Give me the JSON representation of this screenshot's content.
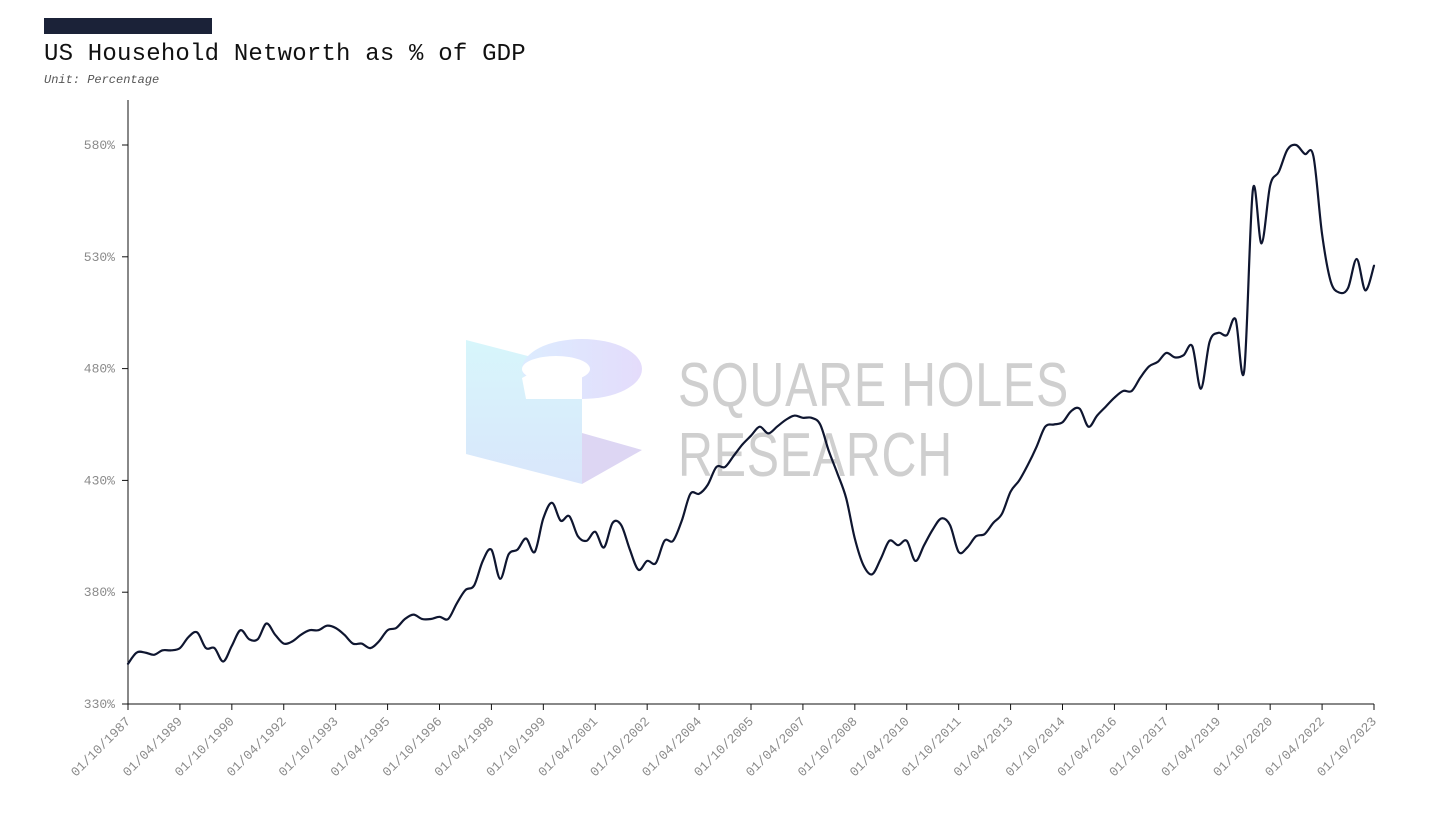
{
  "header": {
    "title": "US Household Networth as % of GDP",
    "subtitle": "Unit: Percentage"
  },
  "watermark": {
    "line1": "SQUARE HOLES",
    "line2": "RESEARCH"
  },
  "colors": {
    "accent": "#1b2238",
    "line": "#0f1630",
    "axis": "#111111",
    "tick_label": "#8a8a8a"
  },
  "chart_data": {
    "type": "line",
    "title": "US Household Networth as % of GDP",
    "subtitle": "Unit: Percentage",
    "xlabel": "",
    "ylabel": "",
    "ylim": [
      330,
      600
    ],
    "yticks": [
      330,
      380,
      430,
      480,
      530,
      580
    ],
    "ytick_labels": [
      "330%",
      "380%",
      "430%",
      "480%",
      "530%",
      "580%"
    ],
    "xlim": [
      "1987-10-01",
      "2023-10-01"
    ],
    "xtick_labels": [
      "01/10/1987",
      "01/04/1989",
      "01/10/1990",
      "01/04/1992",
      "01/10/1993",
      "01/04/1995",
      "01/10/1996",
      "01/04/1998",
      "01/10/1999",
      "01/04/2001",
      "01/10/2002",
      "01/04/2004",
      "01/10/2005",
      "01/04/2007",
      "01/10/2008",
      "01/04/2010",
      "01/10/2011",
      "01/04/2013",
      "01/10/2014",
      "01/04/2016",
      "01/10/2017",
      "01/04/2019",
      "01/10/2020",
      "01/04/2022",
      "01/10/2023"
    ],
    "grid": false,
    "legend": "none",
    "series": [
      {
        "name": "",
        "points": [
          [
            "1987-10-01",
            348
          ],
          [
            "1988-01-01",
            353
          ],
          [
            "1988-04-01",
            353
          ],
          [
            "1988-07-01",
            352
          ],
          [
            "1988-10-01",
            354
          ],
          [
            "1989-01-01",
            354
          ],
          [
            "1989-04-01",
            355
          ],
          [
            "1989-07-01",
            360
          ],
          [
            "1989-10-01",
            362
          ],
          [
            "1990-01-01",
            355
          ],
          [
            "1990-04-01",
            355
          ],
          [
            "1990-07-01",
            349
          ],
          [
            "1990-10-01",
            356
          ],
          [
            "1991-01-01",
            363
          ],
          [
            "1991-04-01",
            359
          ],
          [
            "1991-07-01",
            359
          ],
          [
            "1991-10-01",
            366
          ],
          [
            "1992-01-01",
            361
          ],
          [
            "1992-04-01",
            357
          ],
          [
            "1992-07-01",
            358
          ],
          [
            "1992-10-01",
            361
          ],
          [
            "1993-01-01",
            363
          ],
          [
            "1993-04-01",
            363
          ],
          [
            "1993-07-01",
            365
          ],
          [
            "1993-10-01",
            364
          ],
          [
            "1994-01-01",
            361
          ],
          [
            "1994-04-01",
            357
          ],
          [
            "1994-07-01",
            357
          ],
          [
            "1994-10-01",
            355
          ],
          [
            "1995-01-01",
            358
          ],
          [
            "1995-04-01",
            363
          ],
          [
            "1995-07-01",
            364
          ],
          [
            "1995-10-01",
            368
          ],
          [
            "1996-01-01",
            370
          ],
          [
            "1996-04-01",
            368
          ],
          [
            "1996-07-01",
            368
          ],
          [
            "1996-10-01",
            369
          ],
          [
            "1997-01-01",
            368
          ],
          [
            "1997-04-01",
            375
          ],
          [
            "1997-07-01",
            381
          ],
          [
            "1997-10-01",
            383
          ],
          [
            "1998-01-01",
            394
          ],
          [
            "1998-04-01",
            399
          ],
          [
            "1998-07-01",
            386
          ],
          [
            "1998-10-01",
            397
          ],
          [
            "1999-01-01",
            399
          ],
          [
            "1999-04-01",
            404
          ],
          [
            "1999-07-01",
            398
          ],
          [
            "1999-10-01",
            413
          ],
          [
            "2000-01-01",
            420
          ],
          [
            "2000-04-01",
            412
          ],
          [
            "2000-07-01",
            414
          ],
          [
            "2000-10-01",
            405
          ],
          [
            "2001-01-01",
            403
          ],
          [
            "2001-04-01",
            407
          ],
          [
            "2001-07-01",
            400
          ],
          [
            "2001-10-01",
            411
          ],
          [
            "2002-01-01",
            410
          ],
          [
            "2002-04-01",
            399
          ],
          [
            "2002-07-01",
            390
          ],
          [
            "2002-10-01",
            394
          ],
          [
            "2003-01-01",
            393
          ],
          [
            "2003-04-01",
            403
          ],
          [
            "2003-07-01",
            403
          ],
          [
            "2003-10-01",
            412
          ],
          [
            "2004-01-01",
            424
          ],
          [
            "2004-04-01",
            424
          ],
          [
            "2004-07-01",
            428
          ],
          [
            "2004-10-01",
            436
          ],
          [
            "2005-01-01",
            436
          ],
          [
            "2005-04-01",
            441
          ],
          [
            "2005-07-01",
            446
          ],
          [
            "2005-10-01",
            450
          ],
          [
            "2006-01-01",
            454
          ],
          [
            "2006-04-01",
            451
          ],
          [
            "2006-07-01",
            454
          ],
          [
            "2006-10-01",
            457
          ],
          [
            "2007-01-01",
            459
          ],
          [
            "2007-04-01",
            458
          ],
          [
            "2007-07-01",
            458
          ],
          [
            "2007-10-01",
            455
          ],
          [
            "2008-01-01",
            443
          ],
          [
            "2008-04-01",
            433
          ],
          [
            "2008-07-01",
            422
          ],
          [
            "2008-10-01",
            404
          ],
          [
            "2009-01-01",
            392
          ],
          [
            "2009-04-01",
            388
          ],
          [
            "2009-07-01",
            395
          ],
          [
            "2009-10-01",
            403
          ],
          [
            "2010-01-01",
            401
          ],
          [
            "2010-04-01",
            403
          ],
          [
            "2010-07-01",
            394
          ],
          [
            "2010-10-01",
            401
          ],
          [
            "2011-01-01",
            408
          ],
          [
            "2011-04-01",
            413
          ],
          [
            "2011-07-01",
            410
          ],
          [
            "2011-10-01",
            398
          ],
          [
            "2012-01-01",
            400
          ],
          [
            "2012-04-01",
            405
          ],
          [
            "2012-07-01",
            406
          ],
          [
            "2012-10-01",
            411
          ],
          [
            "2013-01-01",
            415
          ],
          [
            "2013-04-01",
            425
          ],
          [
            "2013-07-01",
            430
          ],
          [
            "2013-10-01",
            437
          ],
          [
            "2014-01-01",
            445
          ],
          [
            "2014-04-01",
            454
          ],
          [
            "2014-07-01",
            455
          ],
          [
            "2014-10-01",
            456
          ],
          [
            "2015-01-01",
            461
          ],
          [
            "2015-04-01",
            462
          ],
          [
            "2015-07-01",
            454
          ],
          [
            "2015-10-01",
            459
          ],
          [
            "2016-01-01",
            463
          ],
          [
            "2016-04-01",
            467
          ],
          [
            "2016-07-01",
            470
          ],
          [
            "2016-10-01",
            470
          ],
          [
            "2017-01-01",
            476
          ],
          [
            "2017-04-01",
            481
          ],
          [
            "2017-07-01",
            483
          ],
          [
            "2017-10-01",
            487
          ],
          [
            "2018-01-01",
            485
          ],
          [
            "2018-04-01",
            486
          ],
          [
            "2018-07-01",
            490
          ],
          [
            "2018-10-01",
            471
          ],
          [
            "2019-01-01",
            492
          ],
          [
            "2019-04-01",
            496
          ],
          [
            "2019-07-01",
            495
          ],
          [
            "2019-10-01",
            502
          ],
          [
            "2020-01-01",
            479
          ],
          [
            "2020-04-01",
            560
          ],
          [
            "2020-07-01",
            536
          ],
          [
            "2020-10-01",
            562
          ],
          [
            "2021-01-01",
            568
          ],
          [
            "2021-04-01",
            578
          ],
          [
            "2021-07-01",
            580
          ],
          [
            "2021-10-01",
            576
          ],
          [
            "2022-01-01",
            575
          ],
          [
            "2022-04-01",
            540
          ],
          [
            "2022-07-01",
            519
          ],
          [
            "2022-10-01",
            514
          ],
          [
            "2023-01-01",
            516
          ],
          [
            "2023-04-01",
            529
          ],
          [
            "2023-07-01",
            515
          ],
          [
            "2023-10-01",
            526
          ]
        ]
      }
    ]
  }
}
